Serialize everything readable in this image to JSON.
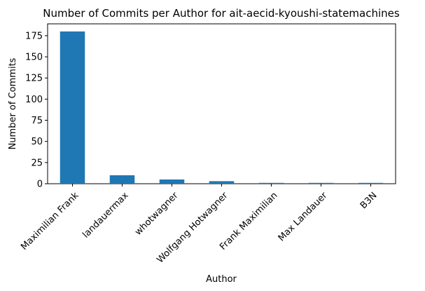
{
  "chart_data": {
    "type": "bar",
    "title": "Number of Commits per Author for ait-aecid-kyoushi-statemachines",
    "xlabel": "Author",
    "ylabel": "Number of Commits",
    "categories": [
      "Maximilian Frank",
      "landauermax",
      "whotwagner",
      "Wolfgang Hotwagner",
      "Frank Maximilian",
      "Max Landauer",
      "B3N"
    ],
    "values": [
      180,
      10,
      5,
      3,
      1,
      1,
      1
    ],
    "ylim": [
      0,
      189
    ],
    "yticks": [
      0,
      25,
      50,
      75,
      100,
      125,
      150,
      175
    ],
    "grid": false,
    "bar_color": "#1f77b4",
    "x_tick_rotation": 45
  }
}
